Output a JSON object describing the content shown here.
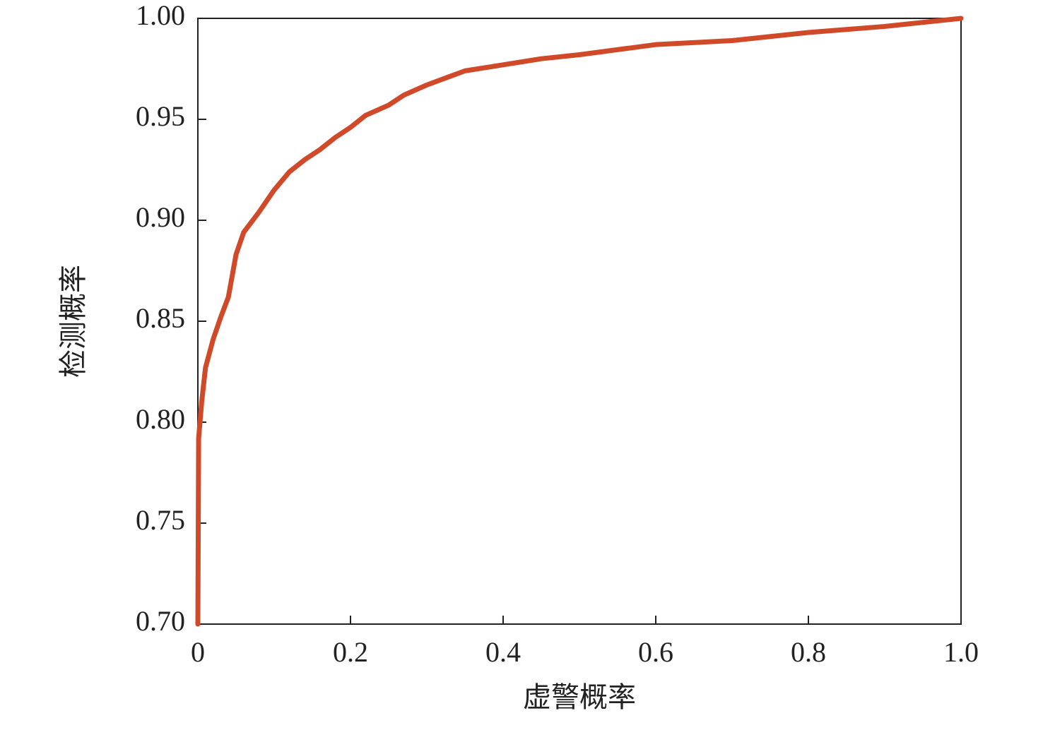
{
  "chart_data": {
    "type": "line",
    "xlabel": "虚警概率",
    "ylabel": "检测概率",
    "xlim": [
      0,
      1
    ],
    "ylim": [
      0.7,
      1
    ],
    "xticks": [
      0,
      0.2,
      0.4,
      0.6,
      0.8,
      {
        "value": 1,
        "label": "1.0"
      }
    ],
    "yticks": [
      {
        "value": 0.7,
        "label": "0.70"
      },
      0.75,
      {
        "value": 0.8,
        "label": "0.80"
      },
      0.85,
      {
        "value": 0.9,
        "label": "0.90"
      },
      0.95,
      {
        "value": 1,
        "label": "1.00"
      }
    ],
    "grid": false,
    "series": [
      {
        "color": "#d04a2a",
        "x": [
          0,
          0.001,
          0.005,
          0.01,
          0.02,
          0.03,
          0.04,
          0.05,
          0.06,
          0.07,
          0.08,
          0.1,
          0.12,
          0.14,
          0.16,
          0.18,
          0.2,
          0.22,
          0.25,
          0.27,
          0.3,
          0.35,
          0.4,
          0.45,
          0.5,
          0.6,
          0.7,
          0.8,
          0.9,
          1
        ],
        "values": [
          0.7,
          0.792,
          0.81,
          0.827,
          0.841,
          0.852,
          0.862,
          0.883,
          0.894,
          0.899,
          0.904,
          0.915,
          0.924,
          0.93,
          0.935,
          0.941,
          0.946,
          0.952,
          0.957,
          0.962,
          0.967,
          0.974,
          0.977,
          0.98,
          0.982,
          0.987,
          0.989,
          0.993,
          0.996,
          1
        ]
      }
    ]
  }
}
